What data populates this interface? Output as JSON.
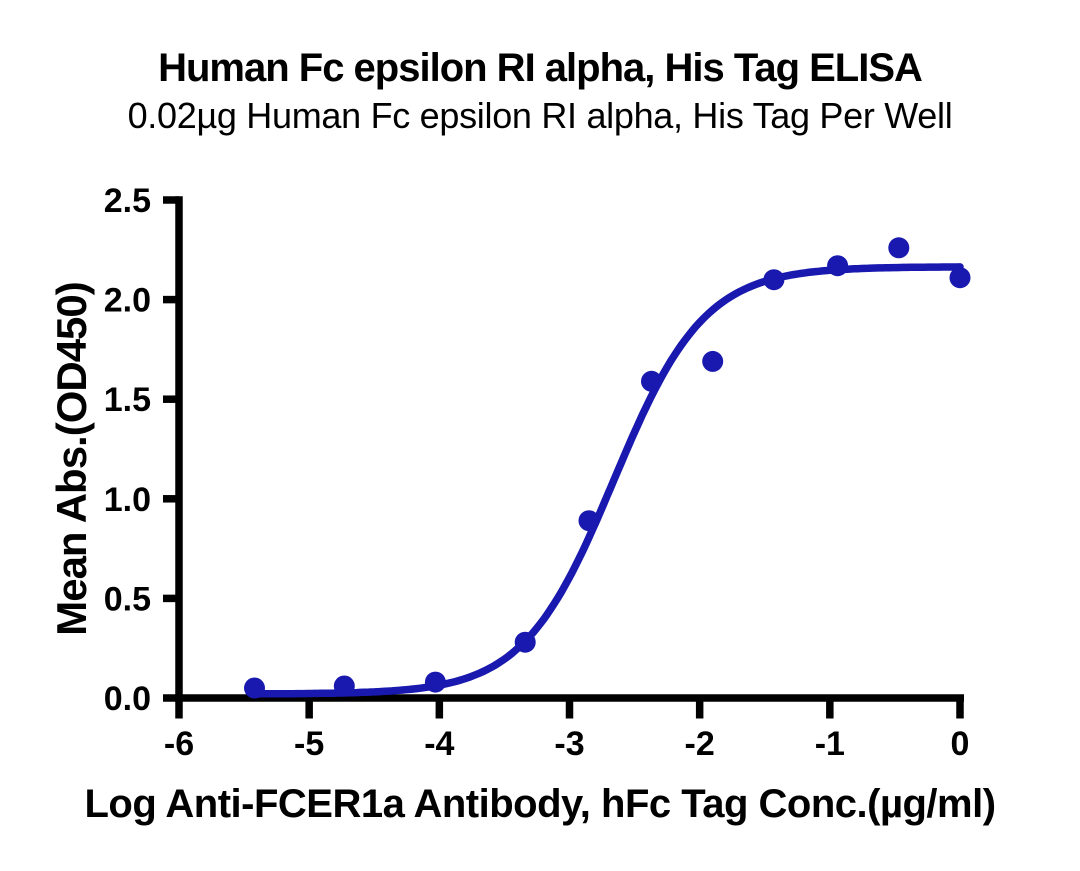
{
  "chart_data": {
    "type": "scatter",
    "title": "Human Fc epsilon RI alpha, His Tag ELISA",
    "subtitle": "0.02µg Human Fc epsilon RI alpha, His Tag Per Well",
    "xlabel": "Log Anti-FCER1a Antibody, hFc Tag Conc.(µg/ml)",
    "ylabel": "Mean Abs.(OD450)",
    "xlim": [
      -6,
      0
    ],
    "ylim": [
      0,
      2.5
    ],
    "x_tick_values": [
      -6,
      -5,
      -4,
      -3,
      -2,
      -1,
      0
    ],
    "x_tick_labels": [
      "-6",
      "-5",
      "-4",
      "-3",
      "-2",
      "-1",
      "0"
    ],
    "y_tick_values": [
      0,
      0.5,
      1,
      1.5,
      2,
      2.5
    ],
    "y_tick_labels": [
      "0.0",
      "0.5",
      "1.0",
      "1.5",
      "2.0",
      "2.5"
    ],
    "grid": false,
    "legend": null,
    "axis_color": "#000000",
    "series": [
      {
        "name": "Anti-FCER1a Antibody, hFc Tag",
        "color": "#1919AF",
        "marker": "circle",
        "points": [
          {
            "x": -5.42,
            "y": 0.05
          },
          {
            "x": -4.73,
            "y": 0.06
          },
          {
            "x": -4.03,
            "y": 0.08
          },
          {
            "x": -3.34,
            "y": 0.28
          },
          {
            "x": -2.85,
            "y": 0.89
          },
          {
            "x": -2.37,
            "y": 1.59
          },
          {
            "x": -1.9,
            "y": 1.69
          },
          {
            "x": -1.43,
            "y": 2.1
          },
          {
            "x": -0.94,
            "y": 2.17
          },
          {
            "x": -0.47,
            "y": 2.26
          },
          {
            "x": 0.0,
            "y": 2.11
          }
        ],
        "fit_curve": {
          "model": "4PL sigmoidal",
          "bottom": 0.02,
          "top": 2.165,
          "log_ec50": -2.66,
          "hill_slope": 1.25,
          "x_start": -5.42,
          "x_end": 0.0
        }
      }
    ]
  }
}
